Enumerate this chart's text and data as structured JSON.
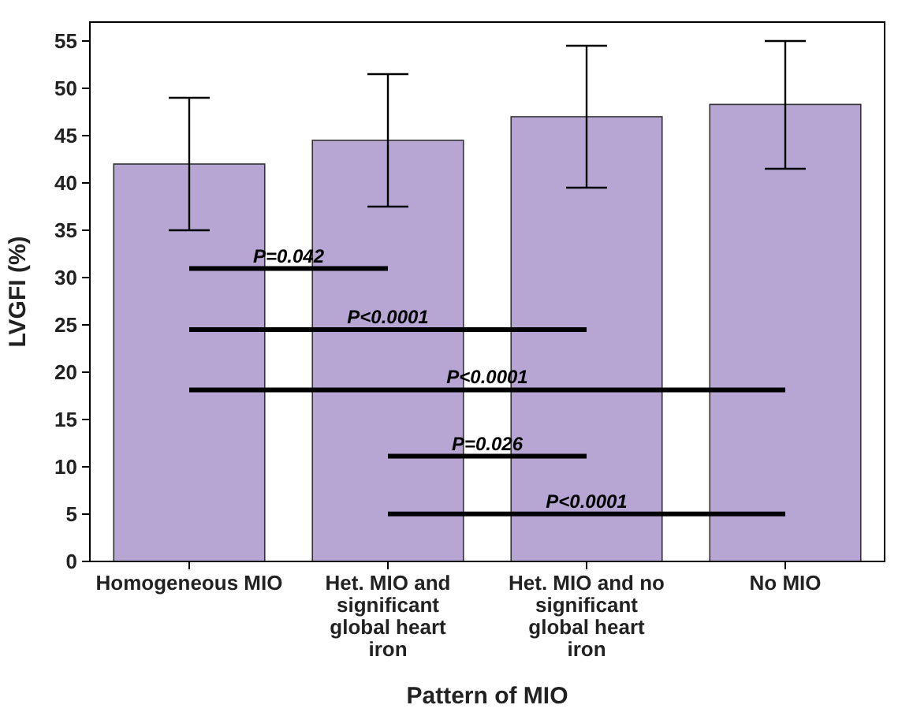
{
  "chart_data": {
    "type": "bar",
    "xlabel": "Pattern of MIO",
    "ylabel": "LVGFI (%)",
    "categories": [
      "Homogeneous MIO",
      "Het. MIO and significant global heart iron",
      "Het. MIO and no significant global heart iron",
      "No MIO"
    ],
    "values": [
      42,
      44.5,
      47,
      48.3
    ],
    "color": "#b7a5d3",
    "errors": [
      [
        35,
        49
      ],
      [
        37.5,
        51.5
      ],
      [
        39.5,
        54.5
      ],
      [
        41.5,
        55
      ]
    ],
    "ylim": [
      0,
      57
    ],
    "yticks": [
      0,
      5,
      10,
      15,
      20,
      25,
      30,
      35,
      40,
      45,
      50,
      55
    ],
    "grid": false,
    "annotations": [
      "P=0.042",
      "P<0.0001",
      "P<0.0001",
      "P=0.026",
      "P<0.0001"
    ]
  }
}
